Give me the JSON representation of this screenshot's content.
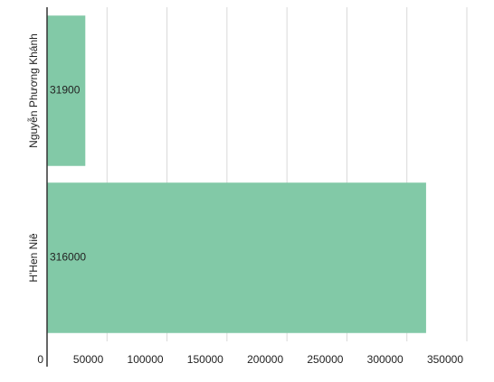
{
  "chart_data": {
    "type": "hbar",
    "categories": [
      "Nguyễn Phương Khánh",
      "H'Hen Niê"
    ],
    "values": [
      31900,
      316000
    ],
    "color": "#82c9a7",
    "xlim": [
      0,
      350000
    ],
    "xticks": [
      0,
      50000,
      100000,
      150000,
      200000,
      250000,
      300000,
      350000
    ],
    "grid": true
  }
}
